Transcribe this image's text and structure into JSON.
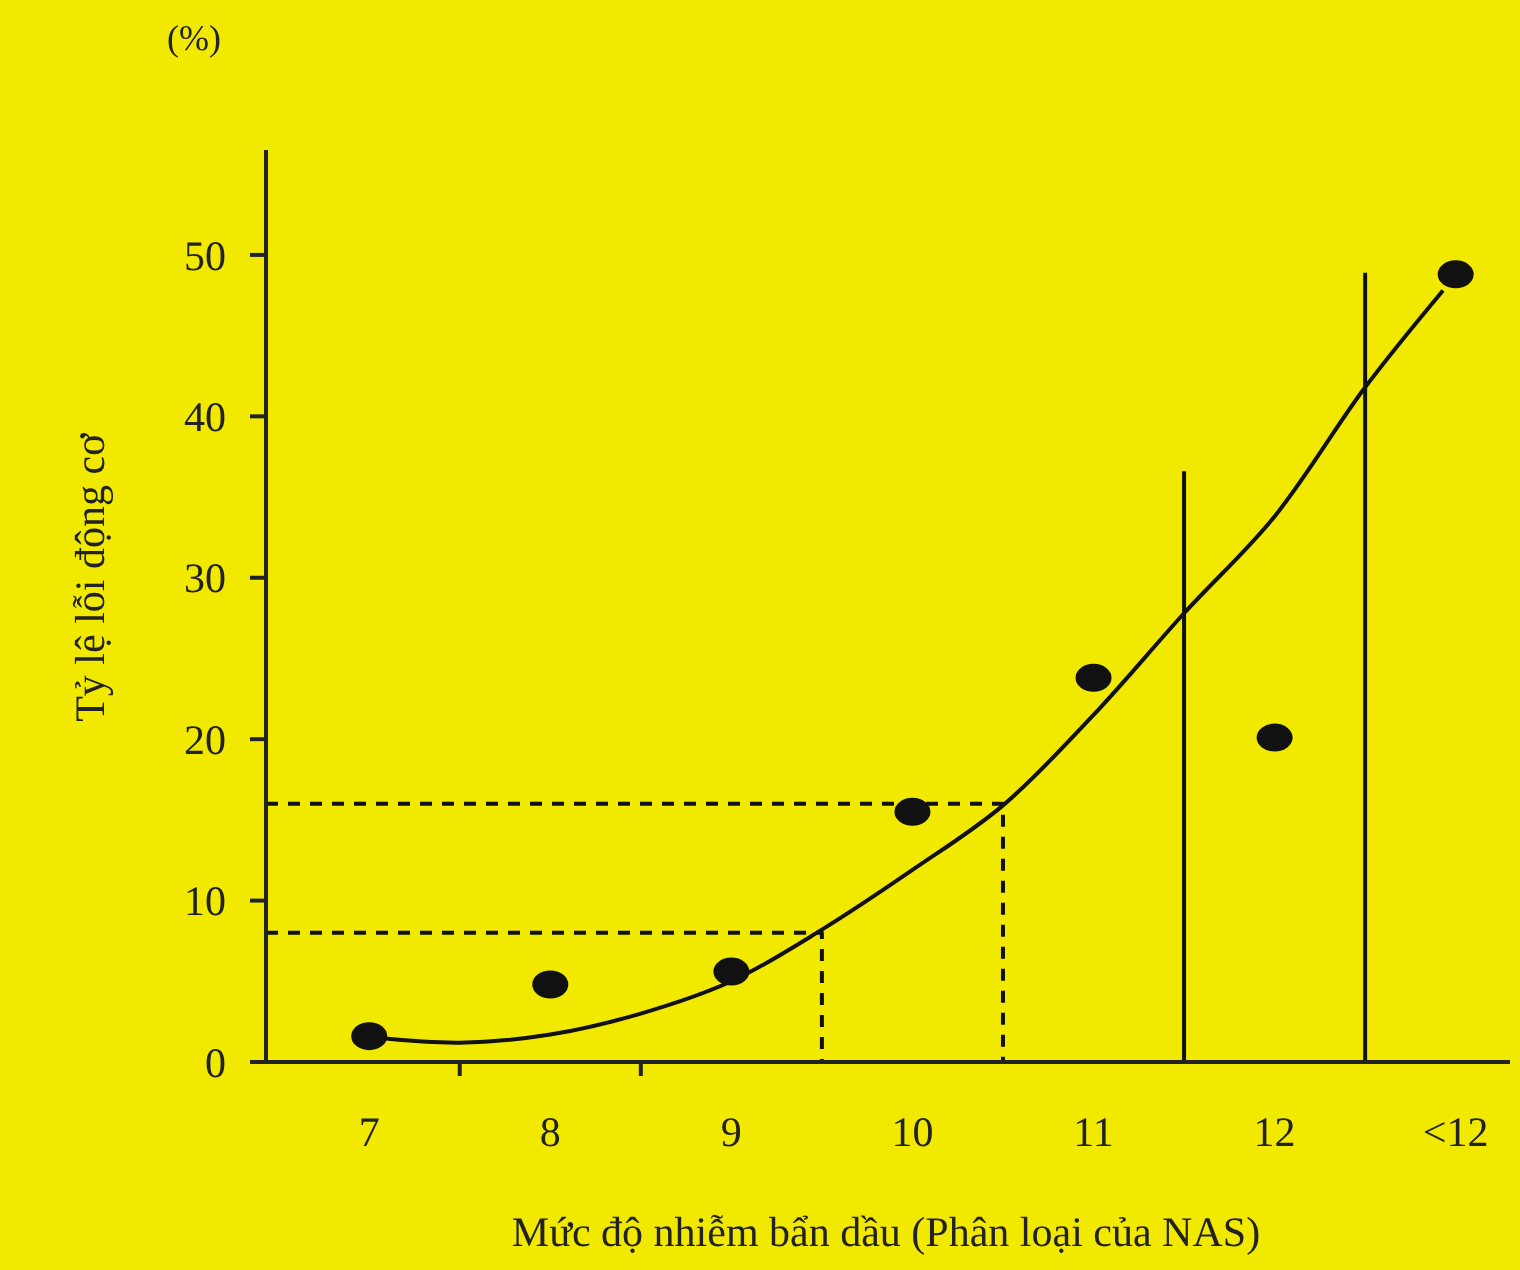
{
  "chart_data": {
    "type": "scatter",
    "xlabel": "Mức độ nhiễm bẩn dầu (Phân loại của NAS)",
    "ylabel": "Tỷ lệ lỗi động cơ",
    "annotations": [
      "(%)"
    ],
    "xlim": [
      6.43,
      13.3
    ],
    "ylim": [
      0,
      56.5
    ],
    "xticks": [
      7,
      {
        "value": 7.5,
        "label": null
      },
      8,
      {
        "value": 8.5,
        "label": null
      },
      9,
      10,
      11,
      12,
      {
        "value": 13,
        "label": "<12"
      }
    ],
    "yticks": [
      0,
      10,
      20,
      30,
      40,
      50
    ],
    "grid": false,
    "series": [
      {
        "marker": "circle",
        "color": "#111111",
        "x": [
          7,
          8,
          9,
          10,
          11,
          12,
          13
        ],
        "values": [
          1.6,
          4.8,
          5.6,
          15.5,
          23.8,
          20.1,
          48.8
        ]
      },
      {
        "type": "line",
        "marker": "none",
        "line_style": "solid",
        "color": "#111111",
        "x": [
          7.05,
          7.5,
          8,
          8.5,
          9,
          9.5,
          10,
          10.5,
          11,
          11.5,
          12,
          12.5,
          12.93
        ],
        "values": [
          1.5,
          1.2,
          1.7,
          3,
          5,
          8.2,
          11.9,
          15.9,
          21.5,
          27.8,
          33.8,
          41.8,
          47.8
        ]
      },
      {
        "type": "line",
        "marker": "none",
        "line_style": "dashed",
        "color": "#111111",
        "x": [
          6.43,
          9.5,
          9.5
        ],
        "values": [
          8,
          8,
          0
        ]
      },
      {
        "type": "line",
        "marker": "none",
        "line_style": "dashed",
        "color": "#111111",
        "x": [
          6.43,
          10.5,
          10.5
        ],
        "values": [
          16,
          16,
          0
        ]
      },
      {
        "type": "line",
        "marker": "none",
        "line_style": "solid",
        "color": "#111111",
        "x": [
          11.5,
          11.5
        ],
        "values": [
          0,
          36.6
        ]
      },
      {
        "type": "line",
        "marker": "none",
        "line_style": "solid",
        "color": "#111111",
        "x": [
          12.5,
          12.5
        ],
        "values": [
          0,
          48.9
        ]
      }
    ]
  }
}
